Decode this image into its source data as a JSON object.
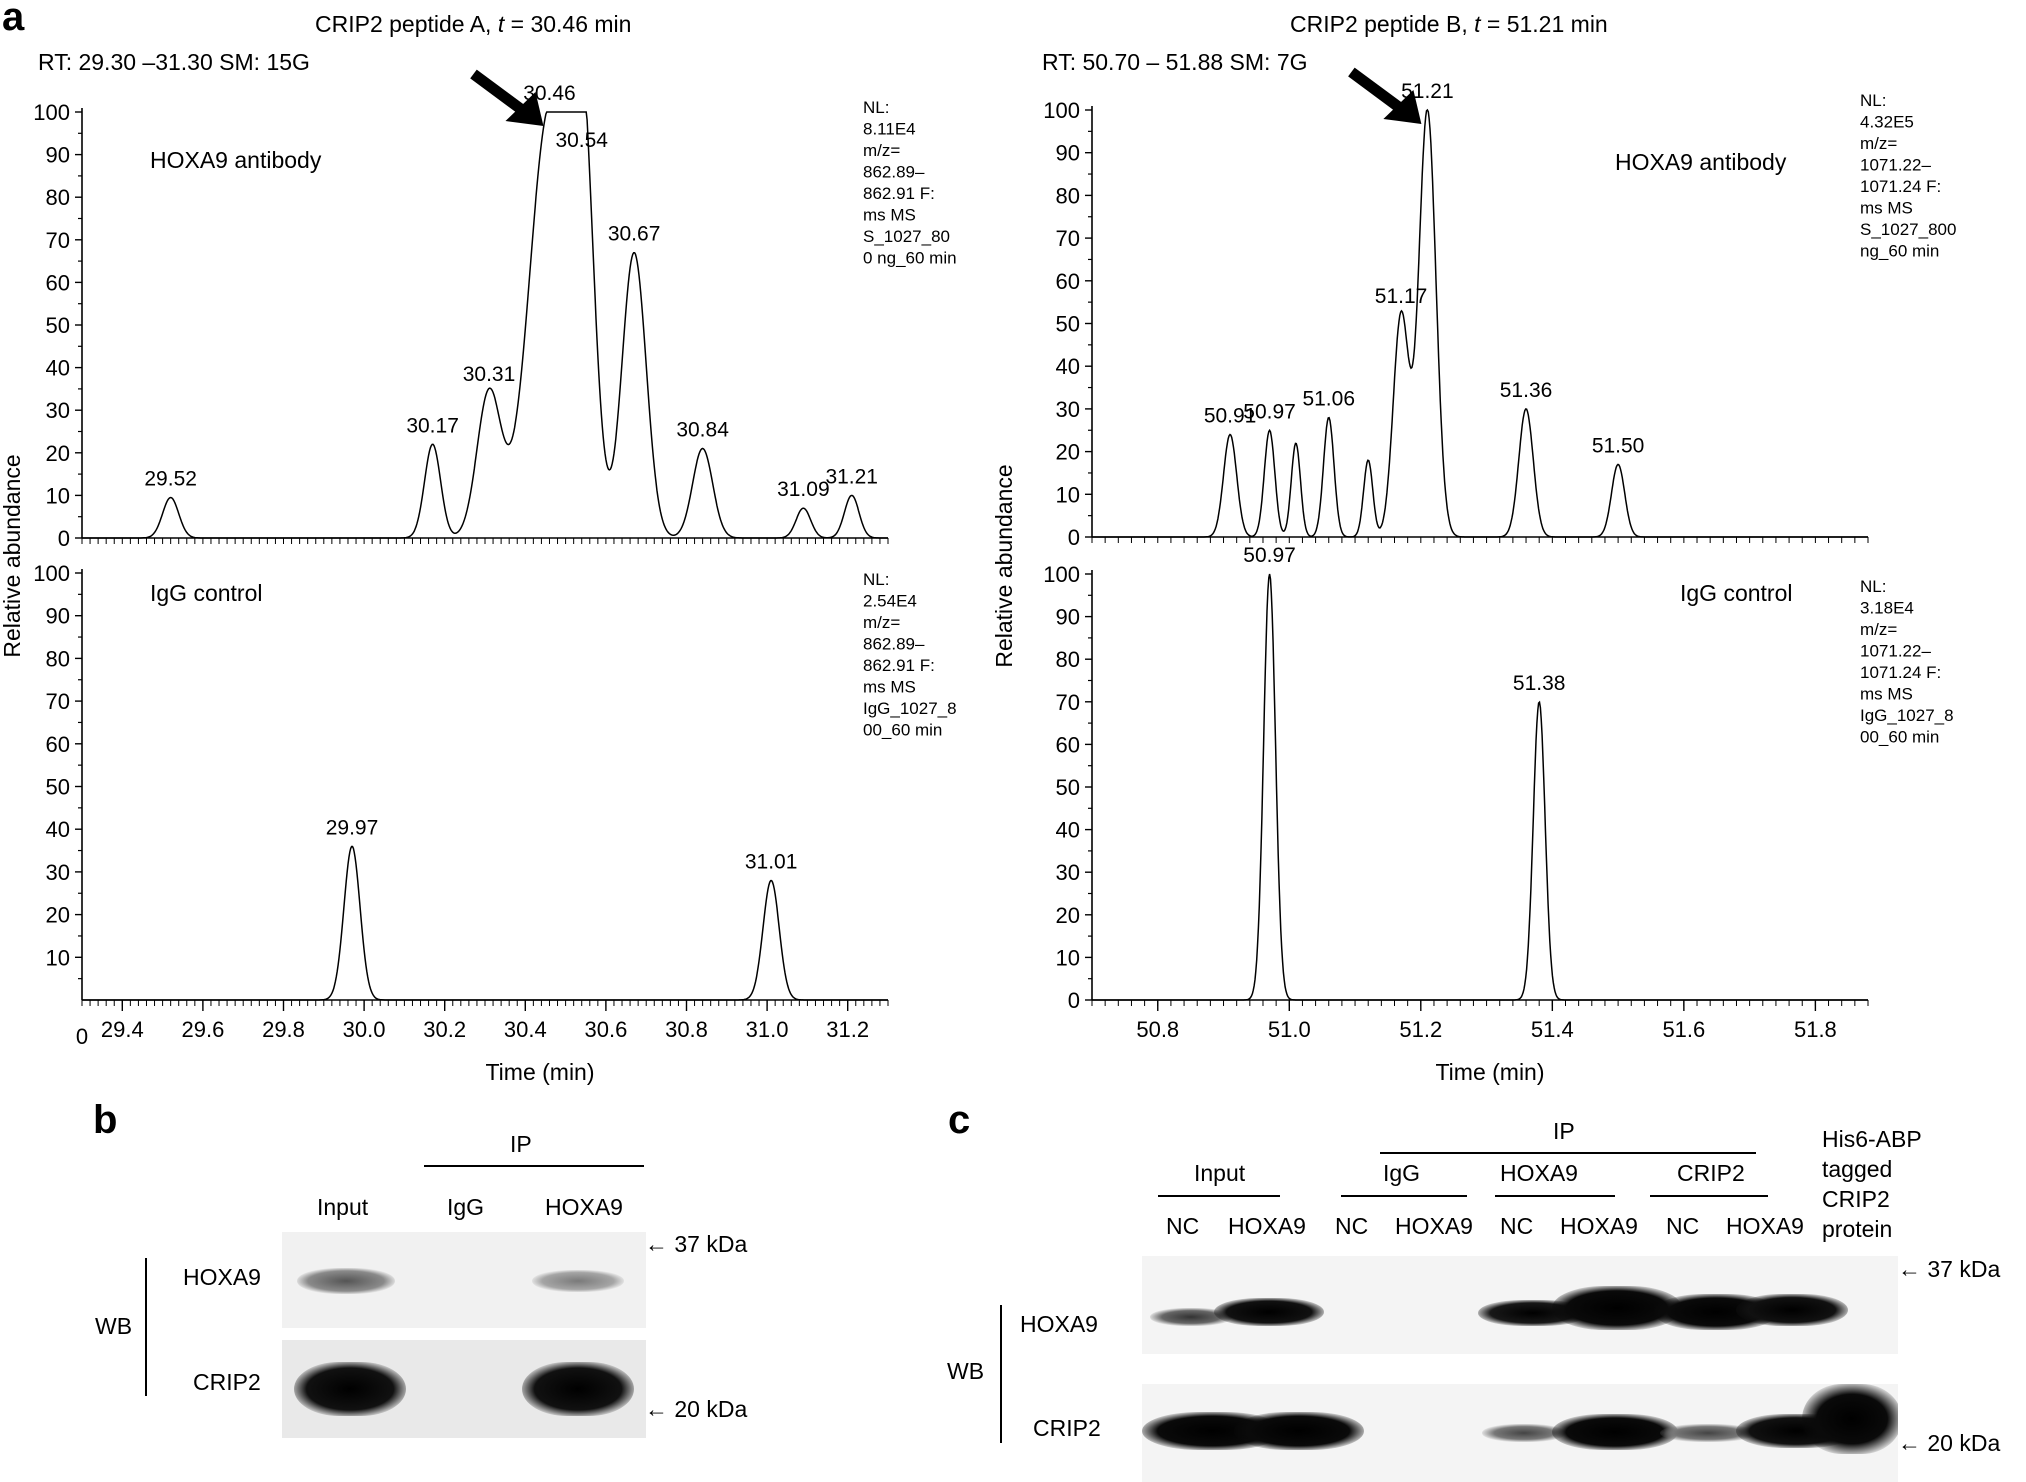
{
  "panel_a": {
    "label": "a",
    "xlabel": "Time (min)",
    "ylabel": "Relative abundance",
    "left": {
      "title": "CRIP2 peptide A, t = 30.46 min",
      "title_prefix": "CRIP2 peptide A, ",
      "title_var": "t",
      "title_suffix": " = 30.46 min",
      "rt": "RT: 29.30 –31.30 SM: 15G",
      "x_zero_label": "0",
      "xticks": [
        "29.4",
        "29.6",
        "29.8",
        "30.0",
        "30.2",
        "30.4",
        "30.6",
        "30.8",
        "31.0",
        "31.2"
      ]
    },
    "right": {
      "title_prefix": "CRIP2 peptide B, ",
      "title_var": "t",
      "title_suffix": " = 51.21 min",
      "rt": "RT: 50.70 – 51.88 SM: 7G",
      "xticks": [
        "50.8",
        "51.0",
        "51.2",
        "51.4",
        "51.6",
        "51.8"
      ]
    },
    "yticks_top": [
      "0",
      "10",
      "20",
      "30",
      "40",
      "50",
      "60",
      "70",
      "80",
      "90",
      "100"
    ],
    "yticks_bottom": [
      "10",
      "20",
      "30",
      "40",
      "50",
      "60",
      "70",
      "80",
      "90",
      "100"
    ],
    "yticks_bottom_right": [
      "0",
      "10",
      "20",
      "30",
      "40",
      "50",
      "60",
      "70",
      "80",
      "90",
      "100"
    ]
  },
  "chart_data": [
    {
      "type": "line",
      "id": "A_top",
      "panel_title": "CRIP2 peptide A, t = 30.46 min",
      "trace_label": "HOXA9 antibody",
      "xlabel": "Time (min)",
      "ylabel": "Relative abundance",
      "xlim": [
        29.3,
        31.3
      ],
      "ylim": [
        0,
        100
      ],
      "nl_info": [
        "NL:",
        "8.11E4",
        "m/z=",
        "862.89–",
        "862.91 F:",
        "ms MS",
        "S_1027_80",
        "0 ng_60 min"
      ],
      "peaks": [
        {
          "x": 29.52,
          "y": 9.5,
          "w": 0.02,
          "label": "29.52"
        },
        {
          "x": 30.17,
          "y": 22,
          "w": 0.02,
          "label": "30.17"
        },
        {
          "x": 30.31,
          "y": 34,
          "w": 0.03,
          "label": "30.31"
        },
        {
          "x": 30.46,
          "y": 100,
          "w": 0.05,
          "label": "30.46"
        },
        {
          "x": 30.54,
          "y": 89,
          "w": 0.03,
          "label": "30.54"
        },
        {
          "x": 30.67,
          "y": 67,
          "w": 0.03,
          "label": "30.67"
        },
        {
          "x": 30.84,
          "y": 21,
          "w": 0.025,
          "label": "30.84"
        },
        {
          "x": 31.09,
          "y": 7,
          "w": 0.018,
          "label": "31.09"
        },
        {
          "x": 31.21,
          "y": 10,
          "w": 0.018,
          "label": "31.21"
        }
      ],
      "arrow_at": 30.46
    },
    {
      "type": "line",
      "id": "A_bottom",
      "trace_label": "IgG control",
      "xlabel": "Time (min)",
      "ylabel": "Relative abundance",
      "xlim": [
        29.3,
        31.3
      ],
      "ylim": [
        0,
        100
      ],
      "nl_info": [
        "NL:",
        "2.54E4",
        "m/z=",
        "862.89–",
        "862.91 F:",
        "ms MS",
        "IgG_1027_8",
        "00_60 min"
      ],
      "peaks": [
        {
          "x": 29.97,
          "y": 36,
          "w": 0.02,
          "label": "29.97"
        },
        {
          "x": 31.01,
          "y": 28,
          "w": 0.02,
          "label": "31.01"
        }
      ]
    },
    {
      "type": "line",
      "id": "B_top",
      "panel_title": "CRIP2 peptide B, t = 51.21 min",
      "trace_label": "HOXA9 antibody",
      "xlabel": "Time (min)",
      "ylabel": "Relative abundance",
      "xlim": [
        50.7,
        51.88
      ],
      "ylim": [
        0,
        100
      ],
      "nl_info": [
        "NL:",
        "4.32E5",
        "m/z=",
        "1071.22–",
        "1071.24 F:",
        "ms MS",
        "S_1027_800",
        "ng_60 min"
      ],
      "peaks": [
        {
          "x": 50.91,
          "y": 24,
          "w": 0.01,
          "label": "50.91"
        },
        {
          "x": 50.97,
          "y": 25,
          "w": 0.008,
          "label": "50.97"
        },
        {
          "x": 51.01,
          "y": 22,
          "w": 0.007,
          "label": ""
        },
        {
          "x": 51.06,
          "y": 28,
          "w": 0.008,
          "label": "51.06"
        },
        {
          "x": 51.12,
          "y": 18,
          "w": 0.007,
          "label": ""
        },
        {
          "x": 51.17,
          "y": 52,
          "w": 0.012,
          "label": "51.17"
        },
        {
          "x": 51.21,
          "y": 100,
          "w": 0.013,
          "label": "51.21"
        },
        {
          "x": 51.36,
          "y": 30,
          "w": 0.011,
          "label": "51.36"
        },
        {
          "x": 51.5,
          "y": 17,
          "w": 0.01,
          "label": "51.50"
        }
      ],
      "arrow_at": 51.21
    },
    {
      "type": "line",
      "id": "B_bottom",
      "trace_label": "IgG control",
      "xlabel": "Time (min)",
      "ylabel": "Relative abundance",
      "xlim": [
        50.7,
        51.88
      ],
      "ylim": [
        0,
        100
      ],
      "nl_info": [
        "NL:",
        "3.18E4",
        "m/z=",
        "1071.22–",
        "1071.24 F:",
        "ms MS",
        "IgG_1027_8",
        "00_60 min"
      ],
      "peaks": [
        {
          "x": 50.97,
          "y": 100,
          "w": 0.009,
          "label": "50.97"
        },
        {
          "x": 51.38,
          "y": 70,
          "w": 0.009,
          "label": "51.38"
        }
      ]
    }
  ],
  "panel_b": {
    "label": "b",
    "ip": "IP",
    "lanes": [
      "Input",
      "IgG",
      "HOXA9"
    ],
    "wb": "WB",
    "rows": [
      "HOXA9",
      "CRIP2"
    ],
    "markers": [
      "← 37 kDa",
      "← 20 kDa"
    ]
  },
  "panel_c": {
    "label": "c",
    "ip": "IP",
    "groups": [
      "Input",
      "IgG",
      "HOXA9",
      "CRIP2"
    ],
    "lanes": [
      "NC",
      "HOXA9",
      "NC",
      "HOXA9",
      "NC",
      "HOXA9",
      "NC",
      "HOXA9"
    ],
    "extra_lane": [
      "His6-ABP",
      "tagged",
      "CRIP2",
      "protein"
    ],
    "wb": "WB",
    "rows": [
      "HOXA9",
      "CRIP2"
    ],
    "markers": [
      "← 37 kDa",
      "← 20 kDa"
    ]
  }
}
